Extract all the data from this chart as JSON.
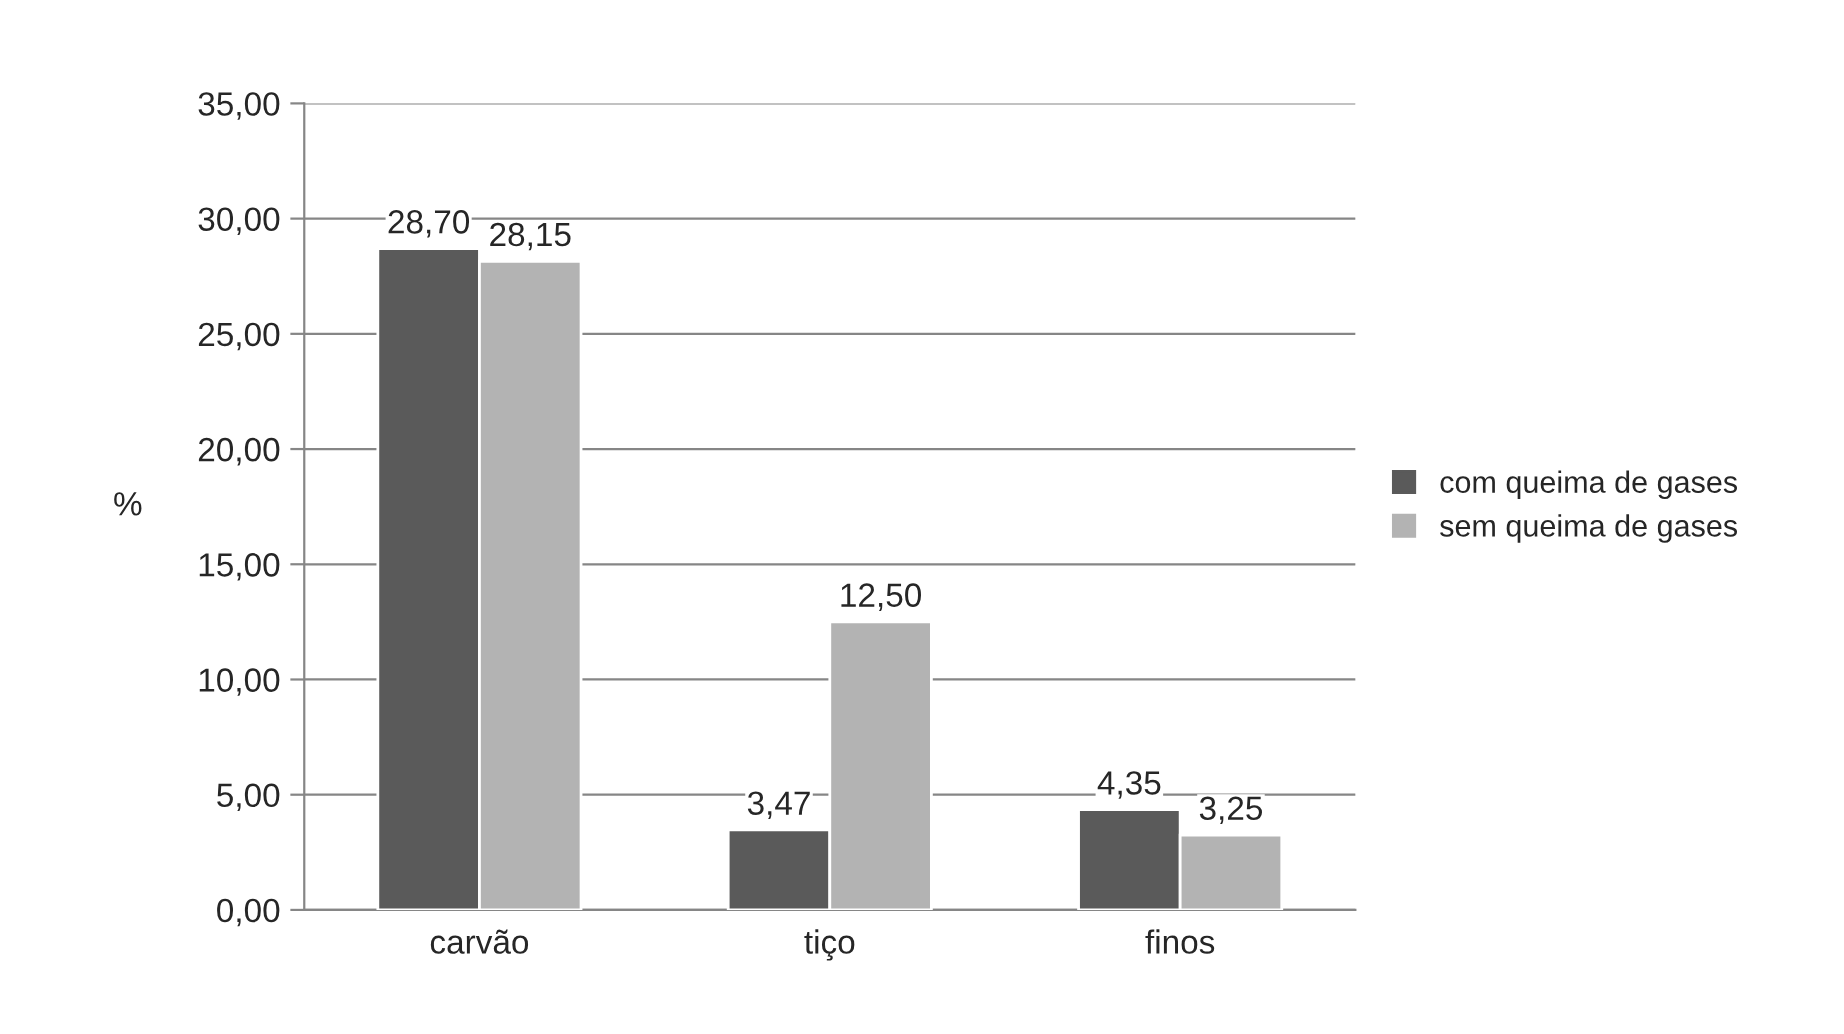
{
  "chart_data": {
    "type": "bar",
    "ylabel": "%",
    "categories": [
      "carvão",
      "tiço",
      "finos"
    ],
    "series": [
      {
        "name": "com queima de gases",
        "color": "#5a5a5a",
        "values": [
          28.7,
          3.47,
          4.35
        ],
        "value_labels": [
          "28,70",
          "3,47",
          "4,35"
        ]
      },
      {
        "name": "sem queima de gases",
        "color": "#b3b3b3",
        "values": [
          28.15,
          12.5,
          3.25
        ],
        "value_labels": [
          "28,15",
          "12,50",
          "3,25"
        ]
      }
    ],
    "ylim": [
      0,
      35
    ],
    "yticks": [
      {
        "value": 0,
        "label": "0,00"
      },
      {
        "value": 5,
        "label": "5,00"
      },
      {
        "value": 10,
        "label": "10,00"
      },
      {
        "value": 15,
        "label": "15,00"
      },
      {
        "value": 20,
        "label": "20,00"
      },
      {
        "value": 25,
        "label": "25,00"
      },
      {
        "value": 30,
        "label": "30,00"
      },
      {
        "value": 35,
        "label": "35,00"
      }
    ],
    "grid": "y",
    "legend": "right"
  }
}
